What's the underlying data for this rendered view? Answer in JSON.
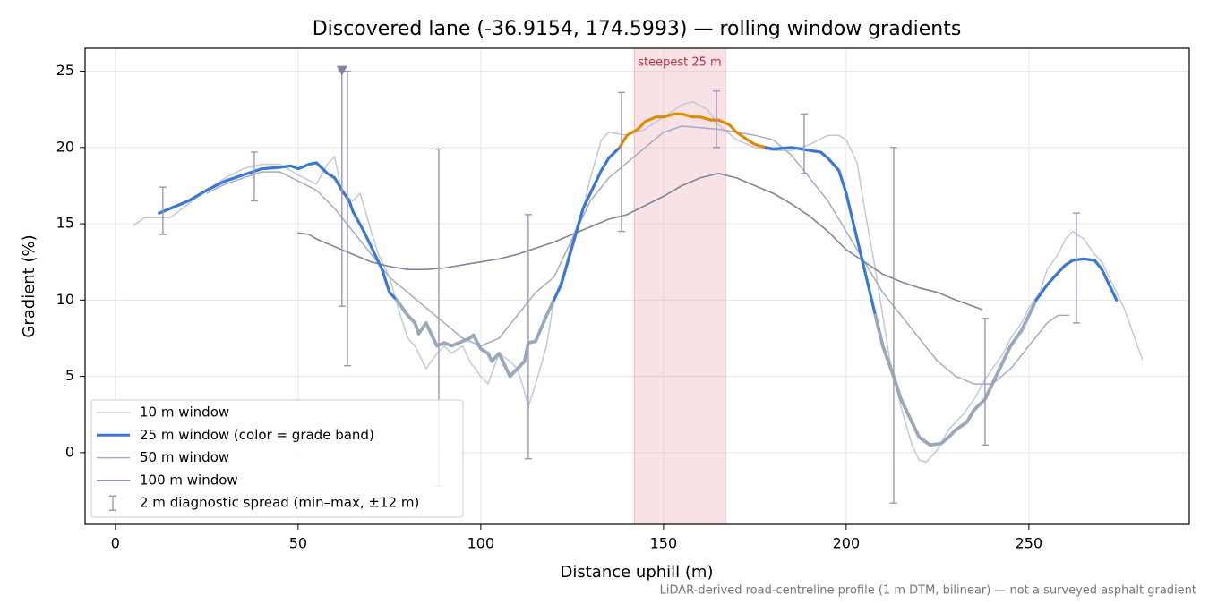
{
  "chart_data": {
    "type": "line",
    "title": "Discovered lane (-36.9154, 174.5993) — rolling window gradients",
    "x_label": "Distance uphill (m)",
    "y_label": "Gradient (%)",
    "footnote": "LiDAR-derived road-centreline profile (1 m DTM, bilinear) — not a surveyed asphalt gradient",
    "xlim": [
      -8.3,
      293.9
    ],
    "ylim": [
      -4.7,
      26.5
    ],
    "xticks": [
      0,
      50,
      100,
      150,
      200,
      250
    ],
    "yticks": [
      0,
      5,
      10,
      15,
      20,
      25
    ],
    "grid": true,
    "legend": "lower left",
    "highlight": {
      "label": "steepest 25 m",
      "x": [
        142,
        167
      ],
      "color": "#e8a0aa"
    },
    "grade_bands": [
      {
        "max": 10,
        "color": "#9aa8bc"
      },
      {
        "max": 20,
        "color": "#3a78d4"
      },
      {
        "color": "#e08a00"
      }
    ],
    "series": [
      {
        "name": "10 m window",
        "color": "#c3c9d5",
        "x": [
          5,
          8,
          12,
          15,
          20,
          25,
          30,
          35,
          40,
          45,
          50,
          55,
          58,
          60,
          62,
          65,
          67,
          70,
          72,
          75,
          78,
          80,
          82,
          85,
          88,
          90,
          92,
          95,
          97,
          100,
          102,
          105,
          108,
          110,
          112,
          113,
          115,
          118,
          120,
          123,
          125,
          128,
          130,
          133,
          135,
          140,
          145,
          150,
          155,
          158,
          162,
          165,
          170,
          175,
          180,
          185,
          190,
          195,
          198,
          200,
          203,
          205,
          208,
          210,
          212,
          215,
          218,
          220,
          222,
          225,
          228,
          232,
          235,
          238,
          240,
          243,
          245,
          248,
          250,
          253,
          255,
          258,
          260,
          262,
          265,
          268,
          270,
          273,
          276,
          279,
          281
        ],
        "values": [
          14.9,
          15.4,
          15.4,
          15.4,
          16.3,
          17.2,
          18.0,
          18.6,
          18.9,
          18.9,
          18.2,
          17.6,
          18.9,
          19.4,
          17.0,
          16.5,
          17.0,
          14.5,
          13.0,
          11.5,
          9.0,
          7.5,
          7.0,
          5.5,
          6.5,
          7.0,
          6.5,
          7.0,
          6.0,
          5.0,
          4.5,
          6.5,
          6.0,
          5.5,
          4.0,
          3.0,
          4.5,
          7.0,
          10.0,
          12.0,
          14.0,
          16.0,
          18.0,
          20.5,
          21.0,
          20.8,
          21.2,
          22.0,
          22.8,
          23.0,
          22.5,
          21.5,
          20.5,
          20.0,
          19.8,
          19.8,
          20.2,
          20.8,
          20.8,
          20.5,
          19.0,
          16.0,
          12.0,
          9.0,
          6.0,
          3.0,
          0.5,
          -0.5,
          -0.6,
          0.2,
          1.5,
          2.5,
          3.5,
          4.8,
          5.5,
          6.5,
          7.5,
          8.5,
          9.5,
          10.5,
          12.0,
          13.0,
          14.0,
          14.5,
          14.0,
          13.0,
          12.5,
          11.0,
          9.5,
          7.5,
          6.1
        ]
      },
      {
        "name": "25 m window (color = grade band)",
        "color": "#3a78d4",
        "banded": true,
        "x": [
          12,
          15,
          20,
          25,
          30,
          35,
          40,
          45,
          48,
          50,
          53,
          55,
          58,
          60,
          62,
          64,
          65,
          68,
          70,
          73,
          75,
          77,
          80,
          82,
          83,
          85,
          88,
          90,
          92,
          95,
          97,
          98,
          100,
          102,
          103,
          105,
          107,
          108,
          110,
          112,
          113,
          115,
          118,
          120,
          122,
          125,
          128,
          130,
          133,
          135,
          138,
          140,
          143,
          145,
          148,
          150,
          153,
          155,
          158,
          160,
          163,
          165,
          168,
          170,
          173,
          175,
          178,
          180,
          185,
          190,
          193,
          195,
          198,
          200,
          202,
          205,
          208,
          210,
          213,
          215,
          218,
          220,
          223,
          226,
          228,
          230,
          233,
          235,
          238,
          240,
          243,
          245,
          248,
          250,
          252,
          255,
          258,
          260,
          262,
          265,
          268,
          270,
          272,
          274
        ],
        "values": [
          15.7,
          16.0,
          16.5,
          17.2,
          17.8,
          18.2,
          18.6,
          18.7,
          18.8,
          18.6,
          18.9,
          19.0,
          18.3,
          18.0,
          17.2,
          16.5,
          15.8,
          14.5,
          13.5,
          12.0,
          10.5,
          10.0,
          9.0,
          8.5,
          7.8,
          8.5,
          7.0,
          7.2,
          7.0,
          7.3,
          7.5,
          7.7,
          6.8,
          6.5,
          6.0,
          6.5,
          5.5,
          5.0,
          5.5,
          6.0,
          7.2,
          7.3,
          9.0,
          10.0,
          11.0,
          13.5,
          16.0,
          17.0,
          18.5,
          19.3,
          20.0,
          20.8,
          21.2,
          21.7,
          22.0,
          22.0,
          22.2,
          22.2,
          22.0,
          22.0,
          21.8,
          21.8,
          21.5,
          21.0,
          20.5,
          20.2,
          20.0,
          19.9,
          20.0,
          19.8,
          19.7,
          19.3,
          18.5,
          17.0,
          15.0,
          12.0,
          9.0,
          7.0,
          5.0,
          3.5,
          2.0,
          1.0,
          0.5,
          0.6,
          1.0,
          1.5,
          2.0,
          2.8,
          3.5,
          4.5,
          6.0,
          7.0,
          8.0,
          9.0,
          10.0,
          11.0,
          11.8,
          12.3,
          12.6,
          12.7,
          12.6,
          12.0,
          11.0,
          10.0
        ]
      },
      {
        "name": "50 m window",
        "color": "#a3adc2",
        "x": [
          25,
          30,
          35,
          40,
          45,
          50,
          55,
          60,
          65,
          70,
          75,
          80,
          85,
          90,
          95,
          100,
          105,
          110,
          115,
          120,
          125,
          130,
          135,
          140,
          145,
          150,
          155,
          160,
          165,
          170,
          175,
          180,
          185,
          190,
          195,
          200,
          205,
          210,
          215,
          220,
          225,
          230,
          235,
          240,
          245,
          250,
          255,
          258,
          261
        ],
        "values": [
          17.0,
          17.6,
          18.0,
          18.4,
          18.4,
          17.8,
          17.2,
          16.0,
          14.5,
          13.0,
          11.5,
          10.5,
          9.5,
          8.5,
          7.5,
          7.0,
          7.5,
          9.0,
          10.5,
          11.5,
          14.0,
          16.5,
          18.0,
          19.0,
          20.0,
          21.0,
          21.4,
          21.3,
          21.2,
          21.0,
          20.8,
          20.5,
          19.5,
          18.0,
          16.5,
          14.5,
          12.5,
          10.5,
          9.0,
          7.5,
          6.0,
          5.0,
          4.5,
          4.5,
          5.5,
          7.0,
          8.5,
          9.0,
          9.0
        ]
      },
      {
        "name": "100 m window",
        "color": "#7c8799",
        "x": [
          50,
          53,
          55,
          60,
          65,
          70,
          75,
          80,
          85,
          90,
          95,
          100,
          105,
          110,
          115,
          120,
          125,
          130,
          135,
          140,
          145,
          150,
          155,
          160,
          165,
          170,
          175,
          180,
          185,
          190,
          195,
          200,
          205,
          210,
          215,
          220,
          225,
          230,
          237
        ],
        "values": [
          14.4,
          14.3,
          14.0,
          13.5,
          13.0,
          12.5,
          12.2,
          12.0,
          12.0,
          12.1,
          12.3,
          12.5,
          12.7,
          13.0,
          13.4,
          13.8,
          14.3,
          14.8,
          15.3,
          15.6,
          16.2,
          16.8,
          17.5,
          18.0,
          18.3,
          18.0,
          17.5,
          17.0,
          16.3,
          15.5,
          14.5,
          13.3,
          12.5,
          11.7,
          11.2,
          10.8,
          10.5,
          10.0,
          9.4
        ]
      }
    ],
    "error_bars": {
      "name": "2 m diagnostic spread (min–max, ±12 m)",
      "color": "#9e95b8",
      "x": [
        13,
        38,
        62,
        63.5,
        88.5,
        113,
        138.5,
        164.5,
        188.5,
        213,
        238,
        263
      ],
      "low": [
        14.3,
        16.5,
        9.6,
        5.7,
        -2.2,
        -0.4,
        14.5,
        20.0,
        18.3,
        -3.3,
        0.5,
        8.5
      ],
      "high": [
        17.4,
        19.7,
        25.0,
        25.0,
        19.9,
        15.6,
        23.6,
        23.7,
        22.2,
        20.0,
        8.8,
        15.7
      ]
    },
    "marker": {
      "x": 62,
      "y": 25,
      "color": "#8a7fa8"
    }
  }
}
